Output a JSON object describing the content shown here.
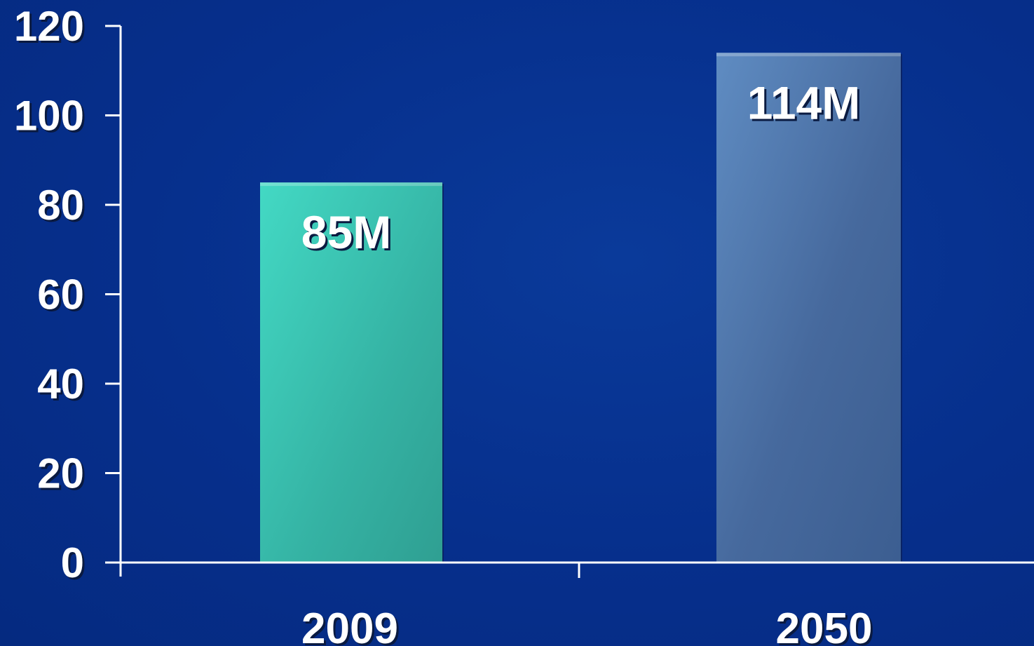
{
  "chart_data": {
    "type": "bar",
    "categories": [
      "2009",
      "2050"
    ],
    "values": [
      85,
      114
    ],
    "data_labels": [
      "85M",
      "114M"
    ],
    "yticks": [
      "0",
      "20",
      "40",
      "60",
      "80",
      "100",
      "120"
    ],
    "ylim": [
      0,
      120
    ],
    "grid": false,
    "legend": "none",
    "title": "",
    "xlabel": "",
    "ylabel": "",
    "colors": {
      "background": "#06308e",
      "bar_1": "#3bbfae",
      "bar_2": "#4a72a8",
      "axis": "#ffffff",
      "text": "#ffffff"
    }
  }
}
